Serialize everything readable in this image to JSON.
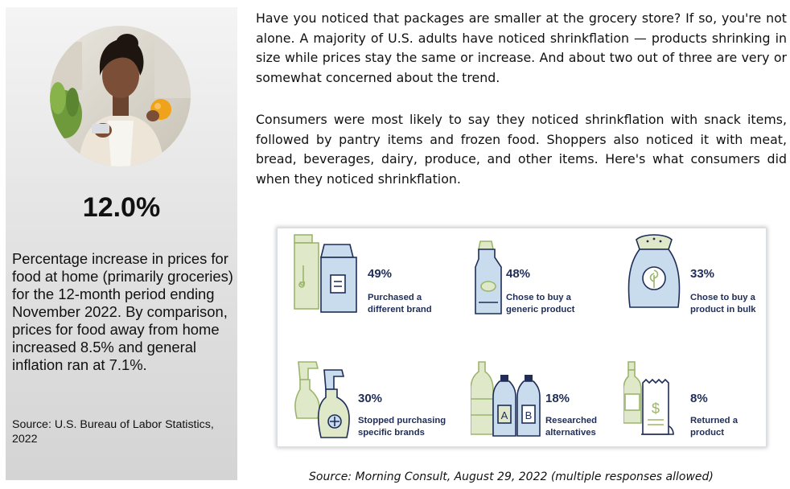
{
  "sidebar": {
    "stat": "12.0%",
    "description": "Percentage increase in prices for food at home (primarily groceries) for the 12-month period ending November 2022. By comparison, prices for food away from home increased 8.5% and general inflation ran at 7.1%.",
    "source": "Source: U.S. Bureau of Labor Statistics, 2022"
  },
  "article": {
    "paragraph1": "Have you noticed that packages are smaller at the grocery store? If so, you're not alone. A majority of U.S. adults have noticed shrinkflation — products shrinking in size while prices stay the same or increase. And about two out of three are very or somewhat concerned about the trend.",
    "paragraph2": "Consumers were most likely to say they noticed shrinkflation with snack items, followed by pantry items and frozen food. Shoppers also noticed it with meat, bread, beverages, dairy, produce, and other items. Here's what consumers did when they noticed shrinkflation."
  },
  "infographic": {
    "items": [
      {
        "percent": "49%",
        "label_line1": "Purchased a",
        "label_line2": "different brand",
        "icon": "milk-carton-icon"
      },
      {
        "percent": "48%",
        "label_line1": "Chose to buy a",
        "label_line2": "generic product",
        "icon": "cleaning-bottle-icon"
      },
      {
        "percent": "33%",
        "label_line1": "Chose to buy a",
        "label_line2": "product in bulk",
        "icon": "bulk-sack-icon"
      },
      {
        "percent": "30%",
        "label_line1": "Stopped purchasing",
        "label_line2": "specific brands",
        "icon": "spray-bottle-icon"
      },
      {
        "percent": "18%",
        "label_line1": "Researched",
        "label_line2": "alternatives",
        "icon": "bottles-ab-icon"
      },
      {
        "percent": "8%",
        "label_line1": "Returned a",
        "label_line2": "product",
        "icon": "receipt-bottle-icon"
      }
    ],
    "icon_letters": {
      "a": "A",
      "b": "B",
      "dollar": "$"
    },
    "colors": {
      "navy": "#1f2d57",
      "blue_light": "#c9dcee",
      "blue_mid": "#8fb3d6",
      "green_light": "#dfe8c8",
      "green_mid": "#9cb56c"
    }
  },
  "caption": "Source: Morning Consult, August 29, 2022 (multiple responses allowed)"
}
